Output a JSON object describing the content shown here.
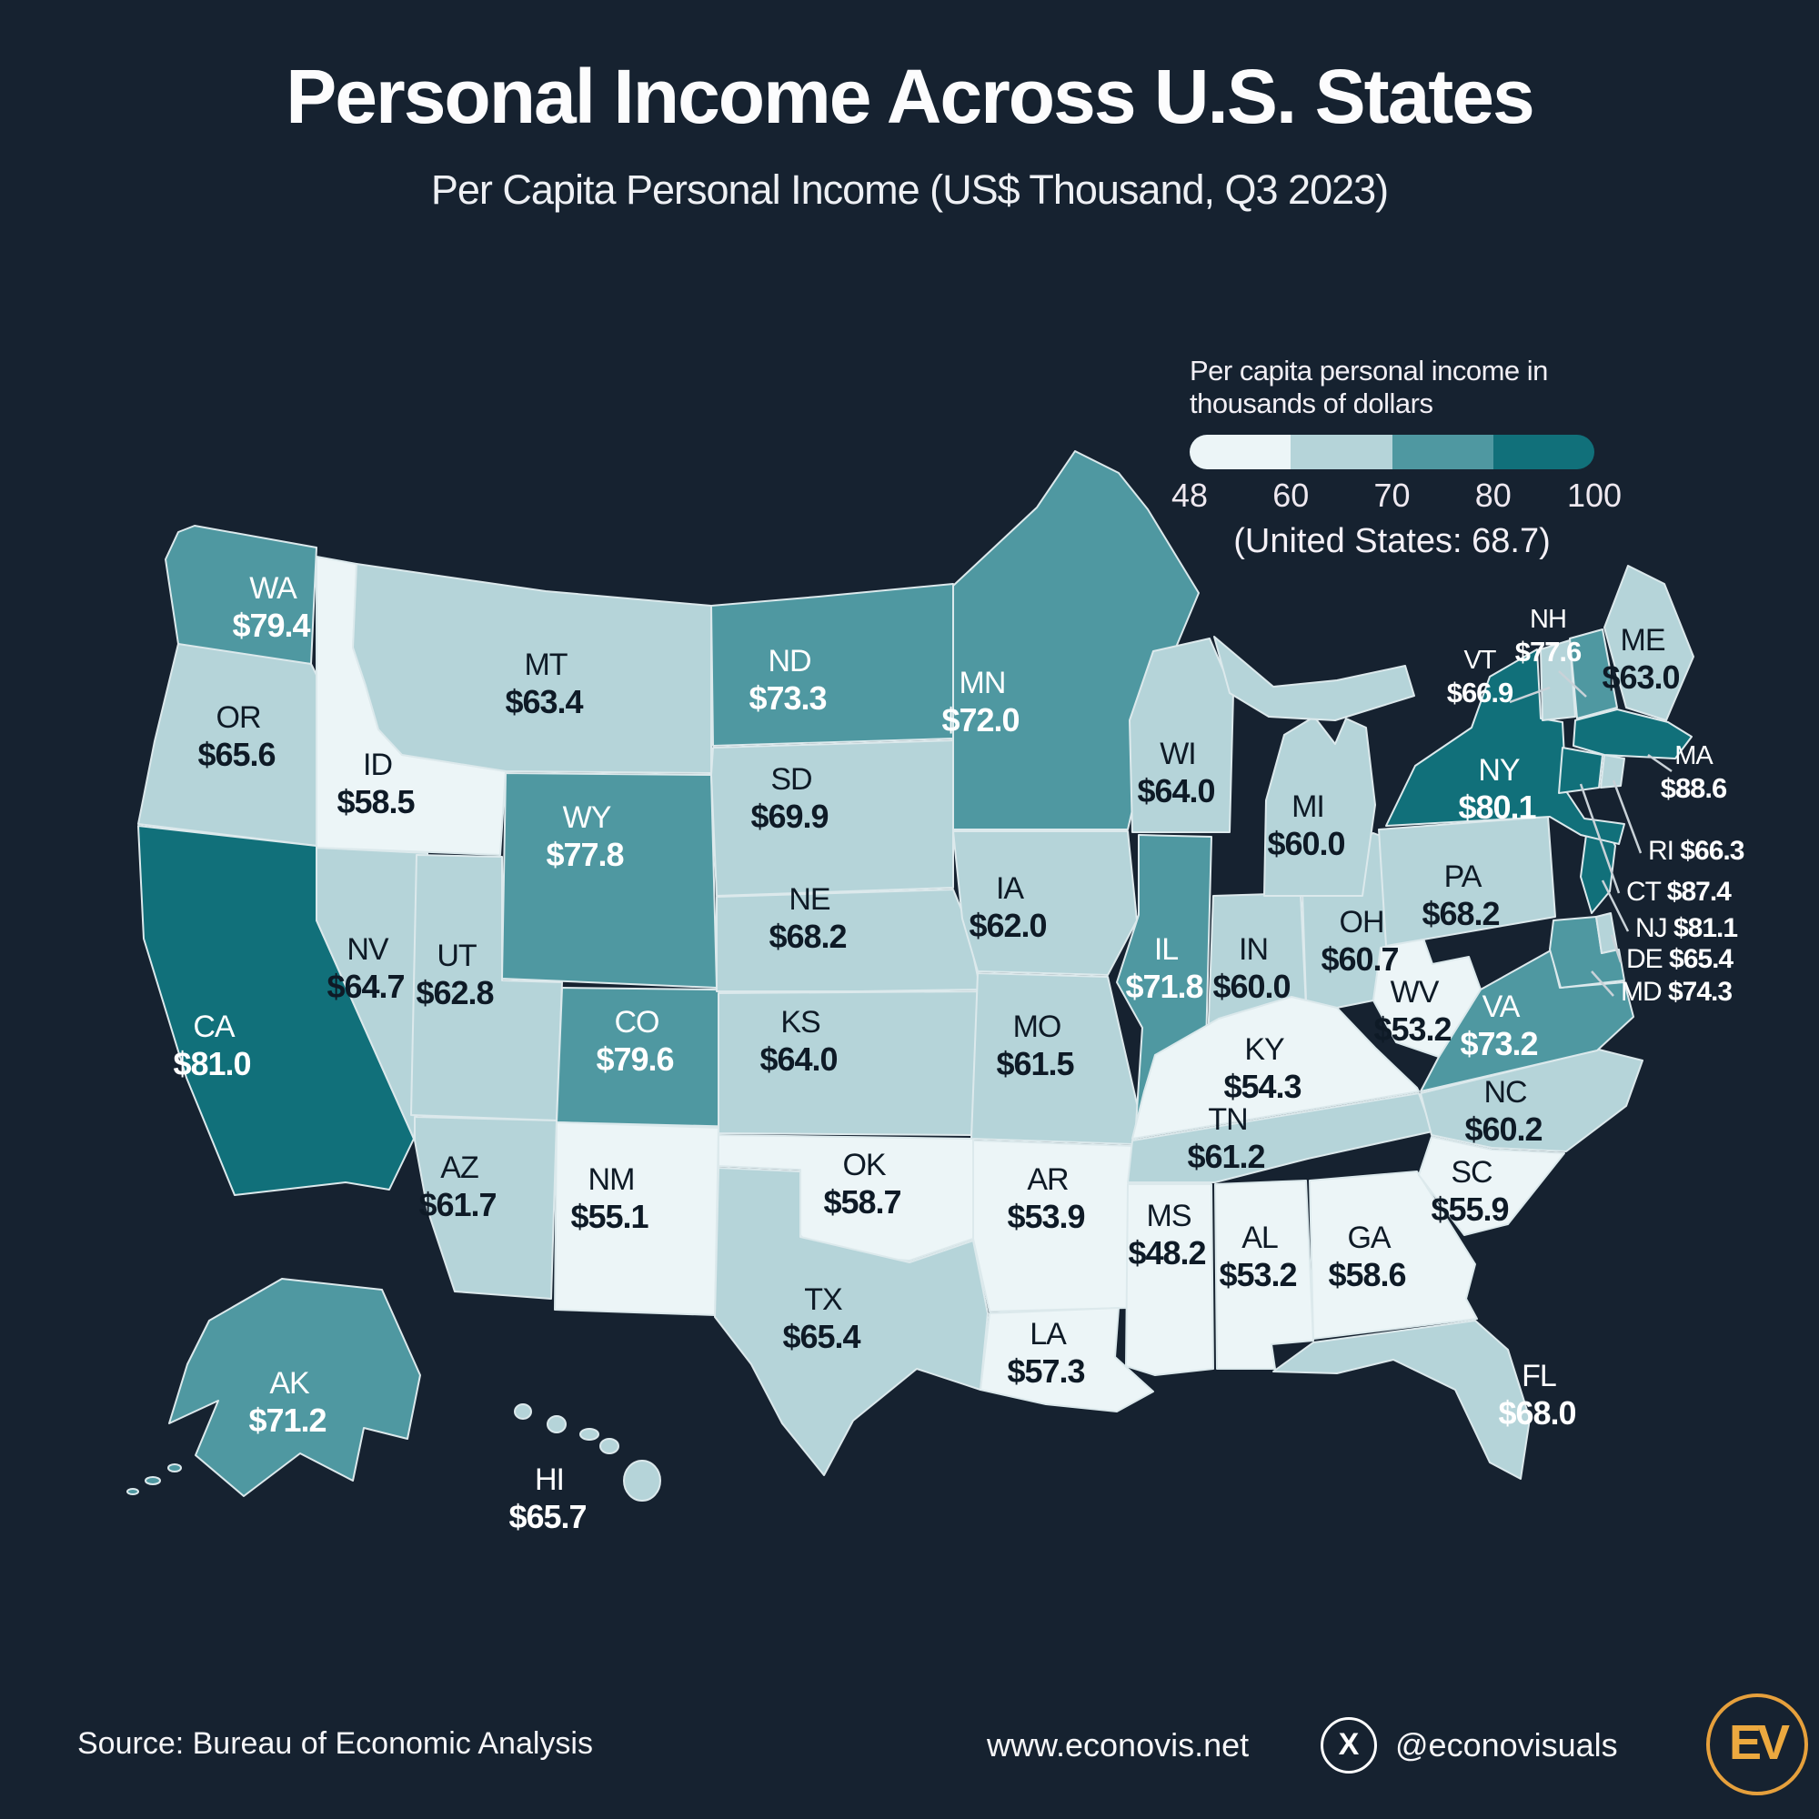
{
  "header": {
    "title": "Personal Income Across U.S. States",
    "subtitle": "Per Capita Personal Income (US$ Thousand, Q3 2023)"
  },
  "legend": {
    "title": "Per capita personal income in thousands of dollars",
    "ticks": [
      "48",
      "60",
      "70",
      "80",
      "100"
    ],
    "note": "(United States: 68.7)",
    "bins": [
      {
        "min": 48,
        "max": 60,
        "color": "#ecf5f7"
      },
      {
        "min": 60,
        "max": 70,
        "color": "#b5d4d9"
      },
      {
        "min": 70,
        "max": 80,
        "color": "#4f98a1"
      },
      {
        "min": 80,
        "max": 100,
        "color": "#11707a"
      }
    ]
  },
  "colors": {
    "background": "#162230",
    "state_border": "#dce9ec",
    "dark_label": "#0e1a26",
    "light_label": "#ffffff",
    "callout_line": "#c9d2d8",
    "accent_gold": "#e6a03c"
  },
  "footer": {
    "source": "Source: Bureau of Economic Analysis",
    "website": "www.econovis.net",
    "x_icon_glyph": "X",
    "x_handle": "@econovisuals",
    "logo_text": "EV"
  },
  "chart_data": {
    "type": "heatmap",
    "subtype": "us-state-choropleth",
    "title": "Per Capita Personal Income (US$ Thousand, Q3 2023)",
    "unit": "US$ thousand",
    "period": "Q3 2023",
    "us_average": 68.7,
    "value_prefix": "$",
    "legend_range": [
      48,
      100
    ],
    "states": [
      {
        "code": "WA",
        "value": 79.4
      },
      {
        "code": "OR",
        "value": 65.6
      },
      {
        "code": "CA",
        "value": 81.0
      },
      {
        "code": "ID",
        "value": 58.5
      },
      {
        "code": "NV",
        "value": 64.7
      },
      {
        "code": "MT",
        "value": 63.4
      },
      {
        "code": "WY",
        "value": 77.8
      },
      {
        "code": "UT",
        "value": 62.8
      },
      {
        "code": "AZ",
        "value": 61.7
      },
      {
        "code": "CO",
        "value": 79.6
      },
      {
        "code": "NM",
        "value": 55.1
      },
      {
        "code": "ND",
        "value": 73.3
      },
      {
        "code": "SD",
        "value": 69.9
      },
      {
        "code": "NE",
        "value": 68.2
      },
      {
        "code": "KS",
        "value": 64.0
      },
      {
        "code": "OK",
        "value": 58.7
      },
      {
        "code": "TX",
        "value": 65.4
      },
      {
        "code": "MN",
        "value": 72.0
      },
      {
        "code": "IA",
        "value": 62.0
      },
      {
        "code": "MO",
        "value": 61.5
      },
      {
        "code": "AR",
        "value": 53.9
      },
      {
        "code": "LA",
        "value": 57.3
      },
      {
        "code": "WI",
        "value": 64.0
      },
      {
        "code": "IL",
        "value": 71.8
      },
      {
        "code": "IN",
        "value": 60.0
      },
      {
        "code": "OH",
        "value": 60.7
      },
      {
        "code": "MI",
        "value": 60.0
      },
      {
        "code": "KY",
        "value": 54.3
      },
      {
        "code": "TN",
        "value": 61.2
      },
      {
        "code": "MS",
        "value": 48.2
      },
      {
        "code": "AL",
        "value": 53.2
      },
      {
        "code": "GA",
        "value": 58.6
      },
      {
        "code": "FL",
        "value": 68.0
      },
      {
        "code": "SC",
        "value": 55.9
      },
      {
        "code": "NC",
        "value": 60.2
      },
      {
        "code": "VA",
        "value": 73.2
      },
      {
        "code": "WV",
        "value": 53.2
      },
      {
        "code": "MD",
        "value": 74.3
      },
      {
        "code": "DE",
        "value": 65.4
      },
      {
        "code": "NJ",
        "value": 81.1
      },
      {
        "code": "PA",
        "value": 68.2
      },
      {
        "code": "NY",
        "value": 80.1
      },
      {
        "code": "CT",
        "value": 87.4
      },
      {
        "code": "RI",
        "value": 66.3
      },
      {
        "code": "MA",
        "value": 88.6
      },
      {
        "code": "VT",
        "value": 66.9
      },
      {
        "code": "NH",
        "value": 77.6
      },
      {
        "code": "ME",
        "value": 63.0
      },
      {
        "code": "AK",
        "value": 71.2
      },
      {
        "code": "HI",
        "value": 65.7
      }
    ]
  }
}
